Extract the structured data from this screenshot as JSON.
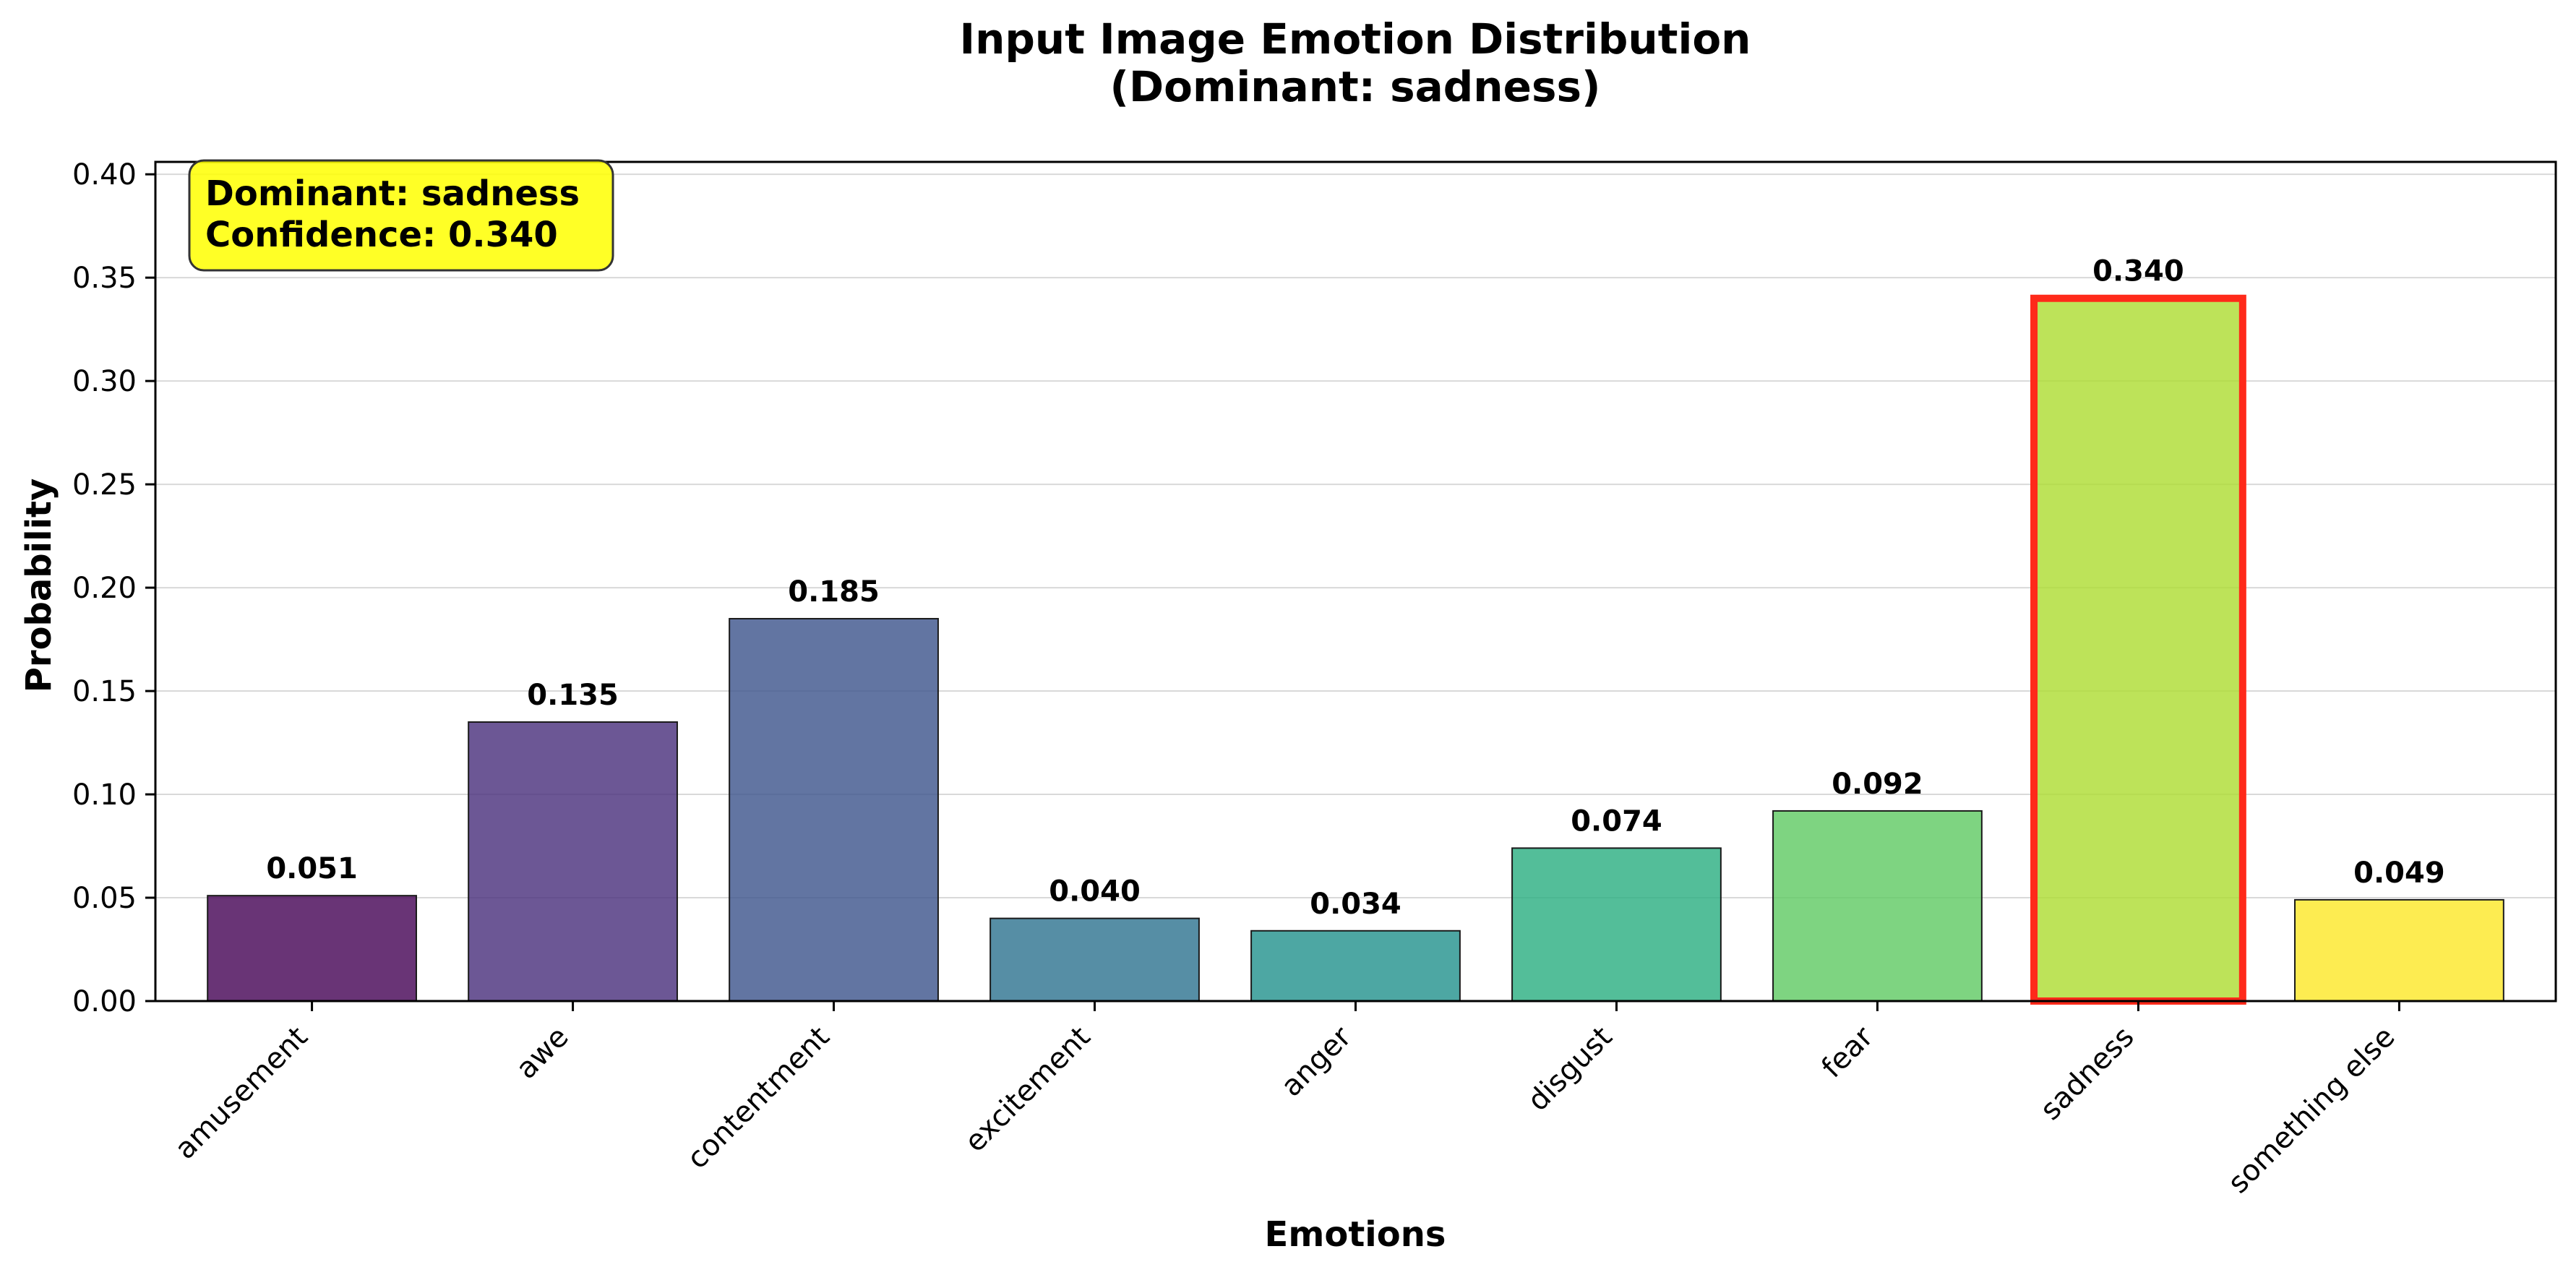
{
  "chart_data": {
    "type": "bar",
    "title": "Input Image Emotion Distribution",
    "subtitle": "(Dominant: sadness)",
    "xlabel": "Emotions",
    "ylabel": "Probability",
    "ylim": [
      0,
      0.406
    ],
    "yticks": [
      "0.00",
      "0.05",
      "0.10",
      "0.15",
      "0.20",
      "0.25",
      "0.30",
      "0.35",
      "0.40"
    ],
    "categories": [
      "amusement",
      "awe",
      "contentment",
      "excitement",
      "anger",
      "disgust",
      "fear",
      "sadness",
      "something else"
    ],
    "values": [
      0.051,
      0.135,
      0.185,
      0.04,
      0.034,
      0.074,
      0.092,
      0.34,
      0.049
    ],
    "value_labels": [
      "0.051",
      "0.135",
      "0.185",
      "0.040",
      "0.034",
      "0.074",
      "0.092",
      "0.340",
      "0.049"
    ],
    "colors": [
      "#440154",
      "#472d7b",
      "#3b528b",
      "#2c728e",
      "#21918c",
      "#28ae80",
      "#5ec962",
      "#addc30",
      "#fde725"
    ],
    "bar_opacity": 0.8,
    "highlight": {
      "index": 7,
      "edge_color": "#ff2a1a"
    },
    "grid": "y",
    "legend": "none",
    "annotation": {
      "line1": "Dominant: sadness",
      "line2": "Confidence: 0.340",
      "background": "#ffff00",
      "position": "top-left"
    }
  }
}
